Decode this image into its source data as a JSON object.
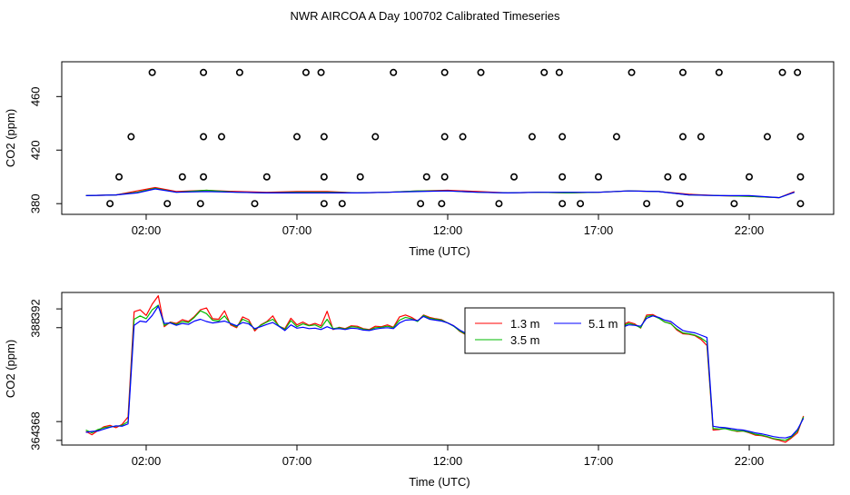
{
  "title": "NWR AIRCOA A  Day 100702  Calibrated Timeseries",
  "chart_data": [
    {
      "type": "line",
      "xlabel": "Time (UTC)",
      "ylabel": "CO2 (ppm)",
      "x_unit": "hours UTC",
      "xlim": [
        -0.8,
        24.8
      ],
      "ylim": [
        372,
        486
      ],
      "xticks": [
        2,
        7,
        12,
        17,
        22
      ],
      "xtick_labels": [
        "02:00",
        "07:00",
        "12:00",
        "17:00",
        "22:00"
      ],
      "yticks": [
        380,
        420,
        460
      ],
      "ytick_labels": [
        "380",
        "420",
        "460"
      ],
      "grid": false,
      "legend": "none",
      "series": [
        {
          "color": "#ff0000",
          "x": [
            0,
            1,
            1.7,
            2.3,
            3,
            4,
            5,
            6,
            7,
            8,
            9,
            10,
            11,
            12,
            13,
            14,
            15,
            16,
            17,
            18,
            19,
            20,
            21,
            22,
            23,
            23.5
          ],
          "y": [
            386,
            386.5,
            389.5,
            392,
            389,
            390,
            389,
            388.5,
            389,
            389,
            388,
            388.5,
            389.5,
            390,
            389,
            388,
            388.5,
            388,
            388.5,
            389.5,
            389,
            387,
            386,
            385.5,
            384.5,
            389
          ]
        },
        {
          "color": "#00bb00",
          "x": [
            0,
            1,
            1.7,
            2.3,
            3,
            4,
            5,
            6,
            7,
            8,
            9,
            10,
            11,
            12,
            13,
            14,
            15,
            16,
            17,
            18,
            19,
            20,
            21,
            22,
            23,
            23.5
          ],
          "y": [
            386,
            386.5,
            388.5,
            391.5,
            388.5,
            390,
            388.5,
            388,
            388.5,
            388.5,
            388,
            388.5,
            389.5,
            389.5,
            388.5,
            388,
            388.5,
            388,
            388.5,
            389.5,
            389,
            386.5,
            386,
            385.5,
            384.5,
            388.5
          ]
        },
        {
          "color": "#0000ff",
          "x": [
            0,
            1,
            1.7,
            2.3,
            3,
            4,
            5,
            6,
            7,
            8,
            9,
            10,
            11,
            12,
            13,
            14,
            15,
            16,
            17,
            18,
            19,
            20,
            21,
            22,
            23,
            23.5
          ],
          "y": [
            386,
            386.5,
            388,
            391,
            388.5,
            389,
            388.5,
            388,
            388,
            388,
            388,
            388.5,
            389,
            389.5,
            388.5,
            388,
            388.5,
            388.5,
            388.5,
            389.5,
            389,
            386.5,
            386,
            386,
            384.5,
            388.5
          ]
        }
      ],
      "points": {
        "x": [
          2.2,
          3.9,
          5.1,
          7.3,
          7.8,
          10.2,
          11.9,
          13.1,
          15.2,
          15.7,
          18.1,
          19.8,
          21.0,
          23.1,
          23.6,
          0.8,
          2.7,
          3.8,
          5.6,
          7.9,
          8.5,
          11.1,
          11.8,
          13.7,
          15.8,
          16.4,
          18.6,
          19.7,
          21.5,
          23.7,
          1.1,
          3.2,
          3.9,
          6.0,
          7.9,
          9.1,
          11.3,
          11.9,
          14.2,
          15.8,
          17.0,
          19.3,
          19.8,
          22.0,
          23.7,
          1.5,
          3.9,
          4.5,
          7.0,
          7.9,
          9.6,
          11.9,
          12.5,
          14.8,
          15.8,
          17.6,
          19.8,
          20.4,
          22.6,
          23.7
        ],
        "y": [
          478,
          478,
          478,
          478,
          478,
          478,
          478,
          478,
          478,
          478,
          478,
          478,
          478,
          478,
          478,
          380,
          380,
          380,
          380,
          380,
          380,
          380,
          380,
          380,
          380,
          380,
          380,
          380,
          380,
          380,
          400,
          400,
          400,
          400,
          400,
          400,
          400,
          400,
          400,
          400,
          400,
          400,
          400,
          400,
          400,
          430,
          430,
          430,
          430,
          430,
          430,
          430,
          430,
          430,
          430,
          430,
          430,
          430,
          430,
          430
        ]
      }
    },
    {
      "type": "line",
      "xlabel": "Time (UTC)",
      "ylabel": "CO2 (ppm)",
      "x_unit": "hours UTC",
      "xlim": [
        -0.8,
        24.8
      ],
      "ylim": [
        363,
        395.5
      ],
      "xticks": [
        2,
        7,
        12,
        17,
        22
      ],
      "xtick_labels": [
        "02:00",
        "07:00",
        "12:00",
        "17:00",
        "22:00"
      ],
      "yticks": [
        364,
        368,
        388,
        392
      ],
      "ytick_labels": [
        "364",
        "368",
        "388",
        "392"
      ],
      "grid": false,
      "legend": "top-center",
      "series": [
        {
          "name": "1.3 m",
          "color": "#ff0000",
          "x": [
            0,
            0.2,
            0.4,
            0.6,
            0.8,
            1.0,
            1.2,
            1.4,
            1.6,
            1.8,
            2.0,
            2.2,
            2.4,
            2.6,
            2.8,
            3.0,
            3.2,
            3.4,
            3.6,
            3.8,
            4.0,
            4.2,
            4.4,
            4.6,
            4.8,
            5.0,
            5.2,
            5.4,
            5.6,
            5.8,
            6.0,
            6.2,
            6.4,
            6.6,
            6.8,
            7.0,
            7.2,
            7.4,
            7.6,
            7.8,
            8.0,
            8.2,
            8.4,
            8.6,
            8.8,
            9.0,
            9.2,
            9.4,
            9.6,
            9.8,
            10.0,
            10.2,
            10.4,
            10.6,
            10.8,
            11.0,
            11.2,
            11.4,
            11.6,
            11.8,
            12.0,
            12.2,
            12.4,
            12.6,
            12.8,
            13.0,
            13.2,
            13.4,
            13.6,
            13.8,
            14.0,
            14.2,
            14.4,
            14.6,
            14.8,
            15.0,
            15.2,
            15.4,
            15.6,
            15.8,
            16.0,
            16.2,
            16.4,
            16.6,
            16.8,
            17.0,
            17.2,
            17.4,
            17.6,
            17.8,
            18.0,
            18.2,
            18.4,
            18.6,
            18.8,
            19.0,
            19.2,
            19.4,
            19.6,
            19.8,
            20.0,
            20.2,
            20.4,
            20.6,
            20.8,
            21.0,
            21.2,
            21.4,
            21.6,
            21.8,
            22.0,
            22.2,
            22.4,
            22.6,
            22.8,
            23.0,
            23.2,
            23.4,
            23.6,
            23.8
          ],
          "y": [
            365.9,
            365.2,
            366.1,
            366.9,
            367.2,
            366.7,
            367.4,
            369,
            391.4,
            391.8,
            390.6,
            393.0,
            394.8,
            388.2,
            389.2,
            388.9,
            389.7,
            389.3,
            390.4,
            391.8,
            392.2,
            389.9,
            389.8,
            391.6,
            388.6,
            388.0,
            390.3,
            389.7,
            387.3,
            388.6,
            389.3,
            390.5,
            388.3,
            387.8,
            390.0,
            388.6,
            389.2,
            388.5,
            388.9,
            388.4,
            391.5,
            387.6,
            388.1,
            387.8,
            388.4,
            388.3,
            387.8,
            387.6,
            388.3,
            388.2,
            388.6,
            388.1,
            390.3,
            390.7,
            390.2,
            389.4,
            390.7,
            390.2,
            389.9,
            389.7,
            389.0,
            388.4,
            387.2,
            386.5,
            386.8,
            386.4,
            386.0,
            385.8,
            386.7,
            386.0,
            386.9,
            387.1,
            387.6,
            386.5,
            387.8,
            388.3,
            386.9,
            386.6,
            387.0,
            386.6,
            386.2,
            386.6,
            386.9,
            387.5,
            386.4,
            387.3,
            388.2,
            387.8,
            387.9,
            388.6,
            389.2,
            388.8,
            387.9,
            390.7,
            390.8,
            390.1,
            389.2,
            388.9,
            387.5,
            386.7,
            386.6,
            386.3,
            385.5,
            384.2,
            366.2,
            366.3,
            366.6,
            366.2,
            365.9,
            366.0,
            365.6,
            365.1,
            365.0,
            364.7,
            364.3,
            364.0,
            363.6,
            364.5,
            365.6,
            369.2
          ]
        },
        {
          "name": "3.5 m",
          "color": "#00bb00",
          "x": [
            0,
            0.2,
            0.4,
            0.6,
            0.8,
            1.0,
            1.2,
            1.4,
            1.6,
            1.8,
            2.0,
            2.2,
            2.4,
            2.6,
            2.8,
            3.0,
            3.2,
            3.4,
            3.6,
            3.8,
            4.0,
            4.2,
            4.4,
            4.6,
            4.8,
            5.0,
            5.2,
            5.4,
            5.6,
            5.8,
            6.0,
            6.2,
            6.4,
            6.6,
            6.8,
            7.0,
            7.2,
            7.4,
            7.6,
            7.8,
            8.0,
            8.2,
            8.4,
            8.6,
            8.8,
            9.0,
            9.2,
            9.4,
            9.6,
            9.8,
            10.0,
            10.2,
            10.4,
            10.6,
            10.8,
            11.0,
            11.2,
            11.4,
            11.6,
            11.8,
            12.0,
            12.2,
            12.4,
            12.6,
            12.8,
            13.0,
            13.2,
            13.4,
            13.6,
            13.8,
            14.0,
            14.2,
            14.4,
            14.6,
            14.8,
            15.0,
            15.2,
            15.4,
            15.6,
            15.8,
            16.0,
            16.2,
            16.4,
            16.6,
            16.8,
            17.0,
            17.2,
            17.4,
            17.6,
            17.8,
            18.0,
            18.2,
            18.4,
            18.6,
            18.8,
            19.0,
            19.2,
            19.4,
            19.6,
            19.8,
            20.0,
            20.2,
            20.4,
            20.6,
            20.8,
            21.0,
            21.2,
            21.4,
            21.6,
            21.8,
            22.0,
            22.2,
            22.4,
            22.6,
            22.8,
            23.0,
            23.2,
            23.4,
            23.6,
            23.8
          ],
          "y": [
            366.2,
            365.6,
            366.3,
            366.7,
            366.9,
            367.0,
            367.2,
            368.0,
            389.8,
            390.5,
            389.9,
            391.8,
            392.8,
            388.5,
            389.1,
            388.7,
            389.3,
            389.1,
            390.2,
            391.6,
            391.0,
            389.6,
            389.4,
            390.5,
            388.8,
            388.2,
            389.8,
            389.2,
            387.6,
            388.5,
            389.2,
            389.8,
            388.4,
            387.6,
            389.5,
            388.2,
            388.8,
            388.4,
            388.6,
            388.0,
            389.8,
            387.8,
            388.0,
            387.7,
            388.2,
            388.1,
            387.7,
            387.5,
            388.0,
            388.1,
            388.3,
            388.0,
            389.6,
            390.2,
            389.9,
            389.3,
            390.6,
            390.0,
            389.8,
            389.6,
            389.0,
            388.3,
            387.3,
            386.6,
            386.9,
            386.5,
            386.2,
            385.9,
            386.6,
            386.2,
            386.8,
            387.0,
            387.4,
            386.6,
            387.5,
            388.0,
            386.9,
            386.7,
            387.0,
            386.8,
            386.4,
            386.6,
            386.8,
            387.3,
            386.6,
            387.2,
            388.0,
            387.7,
            387.8,
            388.3,
            388.9,
            388.6,
            388.0,
            390.4,
            390.6,
            390.0,
            389.2,
            388.8,
            387.7,
            386.9,
            386.7,
            386.4,
            385.8,
            384.9,
            366.5,
            366.4,
            366.5,
            366.2,
            366.0,
            366.0,
            365.7,
            365.3,
            365.1,
            364.8,
            364.4,
            364.2,
            364.0,
            364.7,
            366.0,
            369.0
          ]
        },
        {
          "name": "5.1 m",
          "color": "#0000ff",
          "x": [
            0,
            0.2,
            0.4,
            0.6,
            0.8,
            1.0,
            1.2,
            1.4,
            1.6,
            1.8,
            2.0,
            2.2,
            2.4,
            2.6,
            2.8,
            3.0,
            3.2,
            3.4,
            3.6,
            3.8,
            4.0,
            4.2,
            4.4,
            4.6,
            4.8,
            5.0,
            5.2,
            5.4,
            5.6,
            5.8,
            6.0,
            6.2,
            6.4,
            6.6,
            6.8,
            7.0,
            7.2,
            7.4,
            7.6,
            7.8,
            8.0,
            8.2,
            8.4,
            8.6,
            8.8,
            9.0,
            9.2,
            9.4,
            9.6,
            9.8,
            10.0,
            10.2,
            10.4,
            10.6,
            10.8,
            11.0,
            11.2,
            11.4,
            11.6,
            11.8,
            12.0,
            12.2,
            12.4,
            12.6,
            12.8,
            13.0,
            13.2,
            13.4,
            13.6,
            13.8,
            14.0,
            14.2,
            14.4,
            14.6,
            14.8,
            15.0,
            15.2,
            15.4,
            15.6,
            15.8,
            16.0,
            16.2,
            16.4,
            16.6,
            16.8,
            17.0,
            17.2,
            17.4,
            17.6,
            17.8,
            18.0,
            18.2,
            18.4,
            18.6,
            18.8,
            19.0,
            19.2,
            19.4,
            19.6,
            19.8,
            20.0,
            20.2,
            20.4,
            20.6,
            20.8,
            21.0,
            21.2,
            21.4,
            21.6,
            21.8,
            22.0,
            22.2,
            22.4,
            22.6,
            22.8,
            23.0,
            23.2,
            23.4,
            23.6,
            23.8
          ],
          "y": [
            365.7,
            365.9,
            366.0,
            366.4,
            366.8,
            367.1,
            367.0,
            367.5,
            388.5,
            389.4,
            389.2,
            390.6,
            392.6,
            388.9,
            389.0,
            388.5,
            388.9,
            388.7,
            389.4,
            389.8,
            389.3,
            389.0,
            389.2,
            389.4,
            388.9,
            388.4,
            389.1,
            388.8,
            387.8,
            388.2,
            388.7,
            389.1,
            388.3,
            387.4,
            388.6,
            387.9,
            388.1,
            387.8,
            387.9,
            387.6,
            388.2,
            387.7,
            387.8,
            387.6,
            387.9,
            387.8,
            387.5,
            387.4,
            387.7,
            387.9,
            388.0,
            387.8,
            389.0,
            389.6,
            389.7,
            389.5,
            390.4,
            389.8,
            389.6,
            389.4,
            389.0,
            388.4,
            387.5,
            386.8,
            387.0,
            386.6,
            386.4,
            386.1,
            386.5,
            386.4,
            386.7,
            386.9,
            387.2,
            386.8,
            387.2,
            387.6,
            387.0,
            386.9,
            387.1,
            387.0,
            386.7,
            386.8,
            386.9,
            387.2,
            386.9,
            387.1,
            387.8,
            387.6,
            387.8,
            388.1,
            388.6,
            388.5,
            388.3,
            390.0,
            390.5,
            390.2,
            389.6,
            389.3,
            388.3,
            387.4,
            387.1,
            386.9,
            386.4,
            385.9,
            367.0,
            366.8,
            366.7,
            366.5,
            366.3,
            366.2,
            365.9,
            365.6,
            365.4,
            365.1,
            364.8,
            364.6,
            364.5,
            364.9,
            366.3,
            368.7
          ]
        }
      ]
    }
  ]
}
